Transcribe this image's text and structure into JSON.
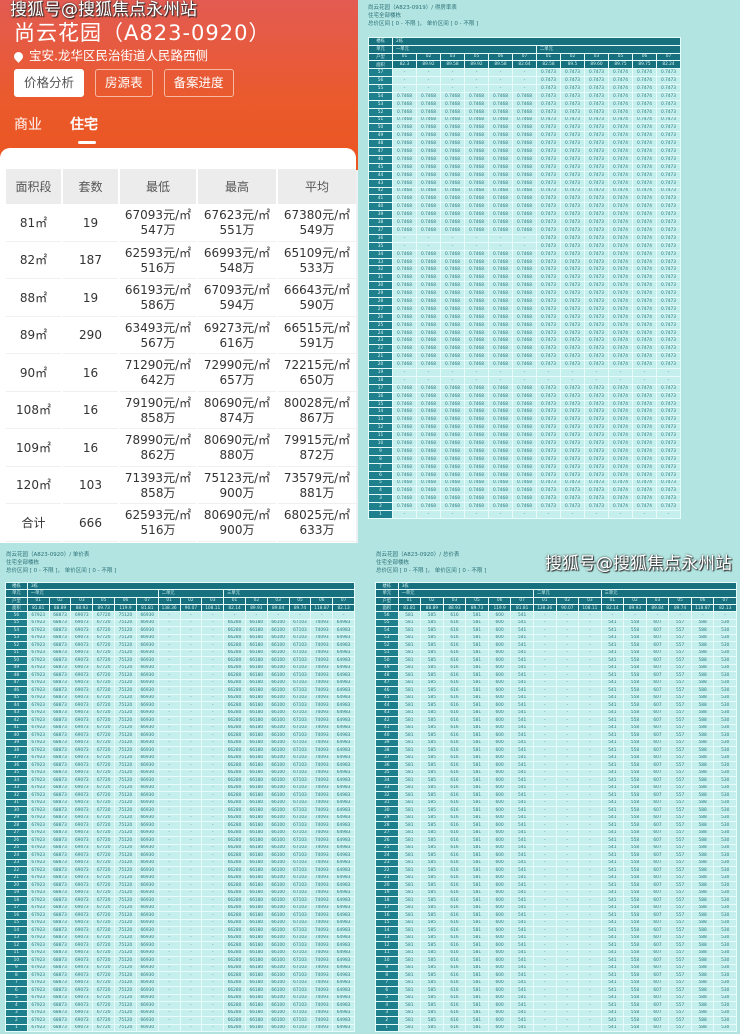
{
  "watermark": "搜狐号@搜狐焦点永州站",
  "app": {
    "title": "尚云花园（A823-0920）",
    "location": "宝安.龙华区民治街道人民路西侧",
    "buttons": [
      "价格分析",
      "房源表",
      "备案进度"
    ],
    "tabs": [
      "商业",
      "住宅"
    ],
    "active_tab": "住宅",
    "table": {
      "headers": [
        "面积段",
        "套数",
        "最低",
        "最高",
        "平均"
      ],
      "rows": [
        [
          "81㎡",
          "19",
          "67093元/㎡",
          "547万",
          "67623元/㎡",
          "551万",
          "67380元/㎡",
          "549万"
        ],
        [
          "82㎡",
          "187",
          "62593元/㎡",
          "516万",
          "66993元/㎡",
          "548万",
          "65109元/㎡",
          "533万"
        ],
        [
          "88㎡",
          "19",
          "66193元/㎡",
          "586万",
          "67093元/㎡",
          "594万",
          "66643元/㎡",
          "590万"
        ],
        [
          "89㎡",
          "290",
          "63493元/㎡",
          "567万",
          "69273元/㎡",
          "616万",
          "66515元/㎡",
          "591万"
        ],
        [
          "90㎡",
          "16",
          "71290元/㎡",
          "642万",
          "72990元/㎡",
          "657万",
          "72215元/㎡",
          "650万"
        ],
        [
          "108㎡",
          "16",
          "79190元/㎡",
          "858万",
          "80690元/㎡",
          "874万",
          "80028元/㎡",
          "867万"
        ],
        [
          "109㎡",
          "16",
          "78990元/㎡",
          "862万",
          "80690元/㎡",
          "880万",
          "79915元/㎡",
          "872万"
        ],
        [
          "120㎡",
          "103",
          "71393元/㎡",
          "858万",
          "75123元/㎡",
          "900万",
          "73579元/㎡",
          "881万"
        ],
        [
          "合计",
          "666",
          "62593元/㎡",
          "516万",
          "80690元/㎡",
          "900万",
          "68025元/㎡",
          "633万"
        ]
      ]
    }
  },
  "sheets": [
    {
      "breadcrumb": "尚云花园（A823-0919）/ 得房率表",
      "subtitle": "住宅全部楼栋",
      "filter": "总价区间 [ 0 - 不限 ]， 单价区间 [ 0 - 不限 ]",
      "labels": [
        "楼栋",
        "单元",
        "户型",
        "面积"
      ],
      "building": "2栋",
      "floor_top": 57,
      "units": [
        {
          "name": "一单元",
          "types": [
            "01",
            "02",
            "03",
            "05",
            "06",
            "07"
          ],
          "areas": [
            "82.3",
            "89.92",
            "89.58",
            "89.92",
            "89.58",
            "82.64"
          ],
          "values": [
            "0.7468",
            "0.7468",
            "0.7468",
            "0.7468",
            "0.7468",
            "0.7468"
          ],
          "empty_floors": [
            57,
            56,
            55,
            36,
            35,
            19,
            18,
            1
          ]
        },
        {
          "name": "二单元",
          "types": [
            "01",
            "02",
            "03",
            "05",
            "06",
            "07"
          ],
          "areas": [
            "82.58",
            "89.5",
            "89.60",
            "89.75",
            "89.75",
            "82.24"
          ],
          "values": [
            "0.7473",
            "0.7473",
            "0.7473",
            "0.7474",
            "0.7474",
            "0.7473"
          ],
          "empty_floors": [
            19,
            18,
            1
          ]
        }
      ]
    },
    {
      "breadcrumb": "尚云花园（A823-0920）/ 单价表",
      "subtitle": "住宅全部楼栋",
      "filter": "总价区间 [ 0 - 不限 ]， 单价区间 [ 0 - 不限 ]",
      "labels": [
        "楼栋",
        "单元",
        "户型",
        "面积"
      ],
      "building": "3栋",
      "floor_top": 56,
      "units": [
        {
          "name": "一单元",
          "types": [
            "01",
            "02",
            "03",
            "05",
            "06",
            "07"
          ],
          "areas": [
            "81.81",
            "88.89",
            "88.93",
            "89.73",
            "119.9",
            "81.81"
          ],
          "values": [
            "67923",
            "68873",
            "69073",
            "67720",
            "75120",
            "66930"
          ],
          "empty_floors": []
        },
        {
          "name": "二单元",
          "types": [
            "01",
            "02",
            "03"
          ],
          "areas": [
            "138.36",
            "90.07",
            "108.11"
          ],
          "values": [
            "-",
            "-",
            "-"
          ],
          "empty_floors": []
        },
        {
          "name": "三单元",
          "types": [
            "01",
            "02",
            "03",
            "05",
            "06",
            "07"
          ],
          "areas": [
            "82.14",
            "89.93",
            "89.84",
            "89.74",
            "118.87",
            "82.13"
          ],
          "values": [
            "66280",
            "66180",
            "66100",
            "67103",
            "74093",
            "64983"
          ],
          "empty_floors": [
            56
          ]
        }
      ]
    },
    {
      "breadcrumb": "尚云花园（A823-0920）/ 总价表",
      "subtitle": "住宅全部楼栋",
      "filter": "总价区间 [ 0 - 不限 ]， 单价区间 [ 0 - 不限 ]",
      "labels": [
        "楼栋",
        "单元",
        "户型",
        "面积"
      ],
      "building": "3栋",
      "floor_top": 56,
      "units": [
        {
          "name": "一单元",
          "types": [
            "01",
            "02",
            "03",
            "05",
            "06",
            "07"
          ],
          "areas": [
            "81.81",
            "88.89",
            "88.93",
            "89.73",
            "119.9",
            "81.81"
          ],
          "values": [
            "581",
            "585",
            "616",
            "581",
            "600",
            "541"
          ],
          "empty_floors": []
        },
        {
          "name": "二单元",
          "types": [
            "01",
            "02",
            "03"
          ],
          "areas": [
            "138.36",
            "90.07",
            "108.11"
          ],
          "values": [
            "-",
            "-",
            "-"
          ],
          "empty_floors": []
        },
        {
          "name": "三单元",
          "types": [
            "01",
            "02",
            "03",
            "05",
            "06",
            "07"
          ],
          "areas": [
            "82.14",
            "89.93",
            "89.84",
            "89.74",
            "118.87",
            "82.13"
          ],
          "values": [
            "541",
            "558",
            "607",
            "557",
            "588",
            "530"
          ],
          "empty_floors": [
            56
          ]
        }
      ]
    }
  ],
  "colors": {
    "brand": "#ea5a2c",
    "teal_header": "#16707e",
    "cell": "#c5efec",
    "background": "#b2e5e1"
  }
}
